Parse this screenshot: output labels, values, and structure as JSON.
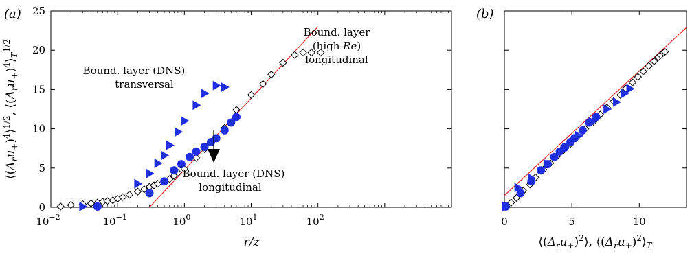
{
  "chart_data": [
    {
      "type": "scatter",
      "panel_label": "(a)",
      "xlabel": "r/z",
      "ylabel": "⟨(Δ_r u_+)^4⟩^{1/2}, ⟨(Δ_r u_+)^4⟩_T^{1/2}",
      "x_scale": "log",
      "xlim": [
        0.01,
        10000
      ],
      "ylim": [
        0,
        25
      ],
      "x_tick_labels": [
        "10^-2",
        "10^-1",
        "10^0",
        "10^1",
        "10^2"
      ],
      "y_ticks": [
        0,
        5,
        10,
        15,
        20,
        25
      ],
      "annotations": {
        "high_re_line1": "Bound. layer",
        "high_re_line2": "(high Re)",
        "high_re_line3": "longitudinal",
        "dns_trans_line1": "Bound. layer (DNS)",
        "dns_trans_line2": "transversal",
        "dns_long_line1": "Bound. layer (DNS)",
        "dns_long_line2": "longitudinal"
      },
      "series": [
        {
          "marker": "open-diamond",
          "color": "#000000",
          "points": [
            [
              0.014,
              0.1
            ],
            [
              0.02,
              0.3
            ],
            [
              0.03,
              0.4
            ],
            [
              0.04,
              0.5
            ],
            [
              0.05,
              0.6
            ],
            [
              0.06,
              0.7
            ],
            [
              0.07,
              0.8
            ],
            [
              0.085,
              0.9
            ],
            [
              0.1,
              1.1
            ],
            [
              0.12,
              1.3
            ],
            [
              0.15,
              1.6
            ],
            [
              0.2,
              2.0
            ],
            [
              0.25,
              2.3
            ],
            [
              0.3,
              2.6
            ],
            [
              0.35,
              2.8
            ],
            [
              0.4,
              3.0
            ],
            [
              0.5,
              3.3
            ],
            [
              0.6,
              3.6
            ],
            [
              0.7,
              4.0
            ],
            [
              0.8,
              4.4
            ],
            [
              1.0,
              4.9
            ],
            [
              1.5,
              6.3
            ],
            [
              2.0,
              7.4
            ],
            [
              3.0,
              8.8
            ],
            [
              4.0,
              10.1
            ],
            [
              6.0,
              12.4
            ],
            [
              10.0,
              14.3
            ],
            [
              15.0,
              15.7
            ],
            [
              20.0,
              16.9
            ],
            [
              30.0,
              18.4
            ],
            [
              45.0,
              19.4
            ],
            [
              60.0,
              19.7
            ],
            [
              80.0,
              19.7
            ],
            [
              110.0,
              19.7
            ]
          ]
        },
        {
          "marker": "filled-triangle-right",
          "color": "#1f2fe0",
          "name": "Bound. layer (DNS) transversal",
          "points": [
            [
              0.03,
              0.1
            ],
            [
              0.2,
              3.0
            ],
            [
              0.3,
              4.3
            ],
            [
              0.4,
              5.6
            ],
            [
              0.5,
              6.6
            ],
            [
              0.6,
              7.9
            ],
            [
              0.8,
              9.6
            ],
            [
              1.0,
              11.0
            ],
            [
              1.5,
              13.0
            ],
            [
              2.0,
              14.5
            ],
            [
              3.0,
              15.5
            ],
            [
              4.0,
              15.3
            ]
          ]
        },
        {
          "marker": "filled-circle",
          "color": "#1f2fe0",
          "name": "Bound. layer (DNS) longitudinal",
          "points": [
            [
              0.05,
              0.1
            ],
            [
              0.3,
              1.8
            ],
            [
              0.5,
              3.3
            ],
            [
              0.7,
              4.7
            ],
            [
              0.9,
              5.5
            ],
            [
              1.2,
              6.4
            ],
            [
              1.5,
              7.1
            ],
            [
              2.0,
              7.7
            ],
            [
              2.5,
              8.3
            ],
            [
              3.0,
              8.8
            ],
            [
              4.0,
              9.8
            ],
            [
              5.0,
              10.8
            ],
            [
              6.0,
              11.5
            ]
          ]
        }
      ],
      "fit_line": {
        "color": "#e0191b",
        "points": [
          [
            0.3,
            0
          ],
          [
            100,
            23
          ]
        ]
      }
    },
    {
      "type": "scatter",
      "panel_label": "(b)",
      "xlabel": "⟨(Δ_r u_+)^2⟩, ⟨(Δ_r u_+)^2⟩_T",
      "x_scale": "linear",
      "xlim": [
        0,
        13.5
      ],
      "ylim": [
        0,
        25
      ],
      "x_ticks": [
        0,
        5,
        10
      ],
      "series": [
        {
          "marker": "open-diamond",
          "color": "#000000",
          "points": [
            [
              0.1,
              0.1
            ],
            [
              0.5,
              0.6
            ],
            [
              0.9,
              1.2
            ],
            [
              1.4,
              2.1
            ],
            [
              1.9,
              2.9
            ],
            [
              2.3,
              3.8
            ],
            [
              2.9,
              4.8
            ],
            [
              3.4,
              5.6
            ],
            [
              3.9,
              6.5
            ],
            [
              4.4,
              7.3
            ],
            [
              4.9,
              8.1
            ],
            [
              5.4,
              9.0
            ],
            [
              6.0,
              10.0
            ],
            [
              6.6,
              10.9
            ],
            [
              7.1,
              11.8
            ],
            [
              7.6,
              12.7
            ],
            [
              8.1,
              13.5
            ],
            [
              8.6,
              14.3
            ],
            [
              9.0,
              15.1
            ],
            [
              9.5,
              15.9
            ],
            [
              9.9,
              16.6
            ],
            [
              10.3,
              17.3
            ],
            [
              10.7,
              18.0
            ],
            [
              11.1,
              18.6
            ],
            [
              11.4,
              19.1
            ],
            [
              11.6,
              19.4
            ],
            [
              11.8,
              19.7
            ],
            [
              11.9,
              19.8
            ]
          ]
        },
        {
          "marker": "filled-triangle-right",
          "color": "#1f2fe0",
          "points": [
            [
              0.1,
              0.1
            ],
            [
              1.0,
              2.5
            ],
            [
              2.0,
              3.7
            ],
            [
              3.2,
              5.5
            ],
            [
              4.4,
              7.3
            ],
            [
              5.5,
              9.1
            ],
            [
              6.5,
              10.9
            ],
            [
              7.6,
              12.5
            ],
            [
              8.3,
              13.4
            ],
            [
              8.9,
              14.5
            ],
            [
              9.3,
              15.1
            ]
          ]
        },
        {
          "marker": "filled-circle",
          "color": "#1f2fe0",
          "points": [
            [
              0.1,
              0.1
            ],
            [
              1.2,
              1.8
            ],
            [
              2.0,
              3.3
            ],
            [
              2.7,
              4.7
            ],
            [
              3.2,
              5.5
            ],
            [
              3.7,
              6.4
            ],
            [
              4.1,
              7.1
            ],
            [
              4.5,
              7.7
            ],
            [
              4.9,
              8.3
            ],
            [
              5.2,
              8.8
            ],
            [
              5.8,
              9.8
            ],
            [
              6.3,
              10.8
            ],
            [
              6.8,
              11.5
            ]
          ]
        }
      ],
      "fit_line": {
        "color": "#e0191b",
        "points": [
          [
            0,
            1.5
          ],
          [
            13.5,
            22.9
          ]
        ]
      }
    }
  ]
}
